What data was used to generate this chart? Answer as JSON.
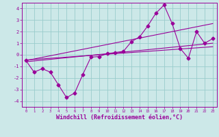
{
  "background_color": "#cce8e8",
  "grid_color": "#99cccc",
  "line_color": "#990099",
  "xlim": [
    -0.5,
    23.5
  ],
  "ylim": [
    -4.5,
    4.5
  ],
  "xlabel": "Windchill (Refroidissement éolien,°C)",
  "xlabel_fontsize": 6,
  "yticks": [
    -4,
    -3,
    -2,
    -1,
    0,
    1,
    2,
    3,
    4
  ],
  "xticks": [
    0,
    1,
    2,
    3,
    4,
    5,
    6,
    7,
    8,
    9,
    10,
    11,
    12,
    13,
    14,
    15,
    16,
    17,
    18,
    19,
    20,
    21,
    22,
    23
  ],
  "line1_x": [
    0,
    1,
    2,
    3,
    4,
    5,
    6,
    7,
    8,
    9,
    10,
    11,
    12,
    13,
    14,
    15,
    16,
    17,
    18,
    19,
    20,
    21,
    22,
    23
  ],
  "line1_y": [
    -0.5,
    -1.5,
    -1.2,
    -1.5,
    -2.6,
    -3.7,
    -3.3,
    -1.7,
    -0.2,
    -0.15,
    0.1,
    0.2,
    0.3,
    1.15,
    1.55,
    2.5,
    3.6,
    4.3,
    2.7,
    0.55,
    -0.3,
    2.0,
    1.0,
    1.4
  ],
  "line2_x": [
    0,
    23
  ],
  "line2_y": [
    -0.5,
    2.7
  ],
  "line3_x": [
    0,
    23
  ],
  "line3_y": [
    -0.6,
    1.0
  ],
  "line4_x": [
    0,
    23
  ],
  "line4_y": [
    -0.45,
    0.7
  ]
}
